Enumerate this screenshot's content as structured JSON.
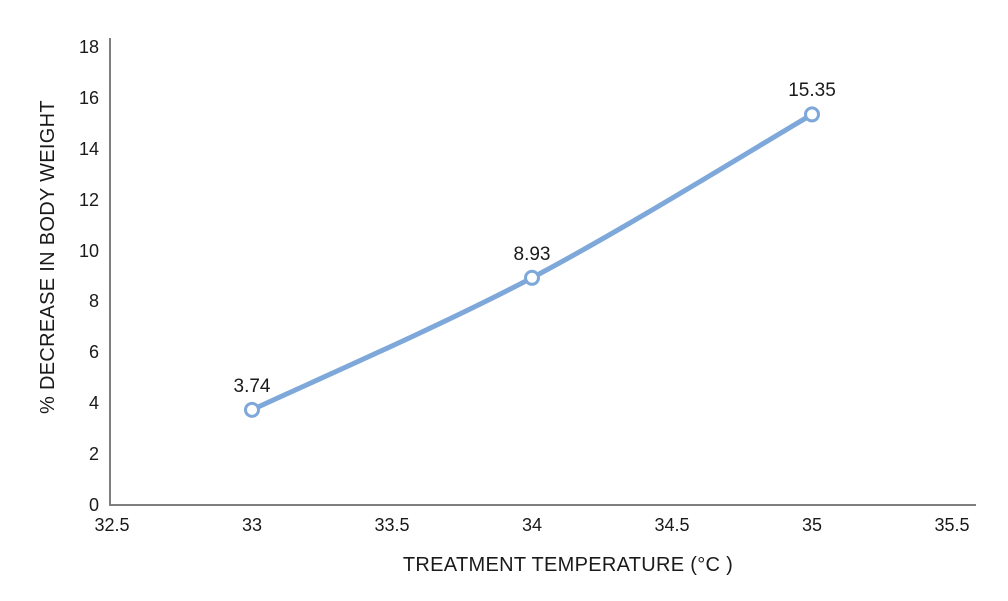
{
  "figure": {
    "background": "#ffffff"
  },
  "chart_data": {
    "type": "line",
    "title": "",
    "xlabel": "TREATMENT TEMPERATURE (°C )",
    "ylabel": "% DECREASE IN BODY WEIGHT",
    "x": [
      33,
      34,
      35
    ],
    "y": [
      3.74,
      8.93,
      15.35
    ],
    "point_labels": [
      "3.74",
      "8.93",
      "15.35"
    ],
    "xlim": [
      32.5,
      35.5
    ],
    "ylim": [
      0,
      18
    ],
    "x_ticks": [
      32.5,
      33,
      33.5,
      34,
      34.5,
      35,
      35.5
    ],
    "x_tick_labels": [
      "32.5",
      "33",
      "33.5",
      "34",
      "34.5",
      "35",
      "35.5"
    ],
    "y_ticks": [
      0,
      2,
      4,
      6,
      8,
      10,
      12,
      14,
      16,
      18
    ],
    "y_tick_labels": [
      "0",
      "2",
      "4",
      "6",
      "8",
      "10",
      "12",
      "14",
      "16",
      "18"
    ],
    "grid": false,
    "legend": "none",
    "line_style": "smooth",
    "line_color": "#7da8d9",
    "marker_style": "open-circle",
    "marker_fill": "#ffffff",
    "axis_color": "#7f7f7f",
    "text_color": "#1a1a1a"
  }
}
